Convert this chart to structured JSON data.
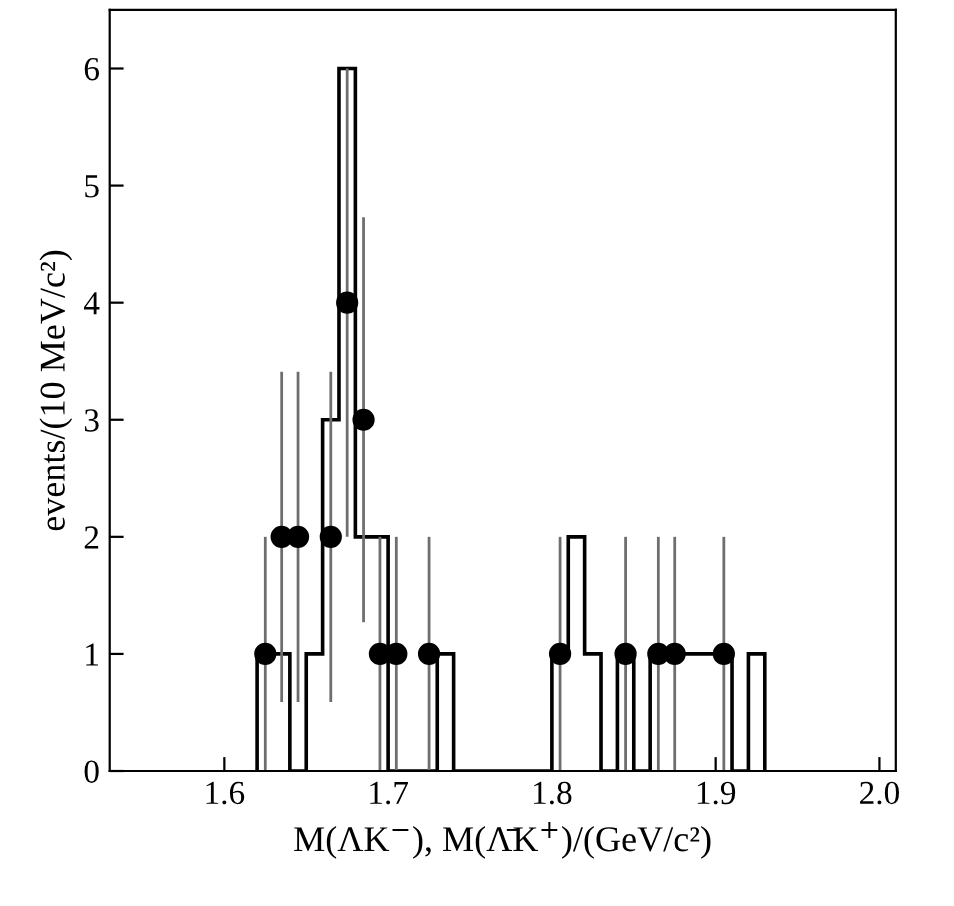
{
  "chart_data": {
    "type": "histogram",
    "xlabel": "M(ΛK$^{−}$), M(Λ̄K$^{+}$)/(GeV/c²)",
    "ylabel": "events/(10 MeV/c²)",
    "series": [
      {
        "color": "#000000",
        "bins": [
          1.62,
          1.63,
          1.64,
          1.65,
          1.66,
          1.67,
          1.68,
          1.69,
          1.7,
          1.71,
          1.72,
          1.73,
          1.74,
          1.75,
          1.76,
          1.77,
          1.78,
          1.79,
          1.8,
          1.81,
          1.82,
          1.83,
          1.84,
          1.85,
          1.86,
          1.87,
          1.88,
          1.89,
          1.9,
          1.91,
          1.92,
          1.93
        ],
        "values": [
          1,
          1,
          0,
          1,
          3,
          6,
          2,
          2,
          0,
          0,
          0,
          1,
          0,
          0,
          0,
          0,
          0,
          0,
          1,
          2,
          1,
          0,
          1,
          0,
          1,
          1,
          1,
          1,
          1,
          0,
          1
        ]
      },
      {
        "type": "scatter",
        "color": "#000000",
        "x": [
          1.625,
          1.635,
          1.645,
          1.665,
          1.675,
          1.685,
          1.695,
          1.705,
          1.725,
          1.805,
          1.845,
          1.865,
          1.875,
          1.905
        ],
        "values": [
          1,
          2,
          2,
          2,
          4,
          3,
          1,
          1,
          1,
          1,
          1,
          1,
          1,
          1
        ],
        "errors": [
          1,
          1.41,
          1.41,
          1.41,
          2,
          1.73,
          1,
          1,
          1,
          1,
          1,
          1,
          1,
          1
        ]
      }
    ],
    "marker": "circle",
    "grid": false,
    "legend": false,
    "xlim": [
      1.53,
      2.01
    ],
    "xticks": [
      1.6,
      1.7,
      1.8,
      1.9,
      {
        "value": 2,
        "label": "2.0"
      }
    ],
    "ylim": [
      0,
      6.5
    ],
    "yticks": [
      0,
      1,
      2,
      3,
      4,
      5,
      6
    ]
  }
}
